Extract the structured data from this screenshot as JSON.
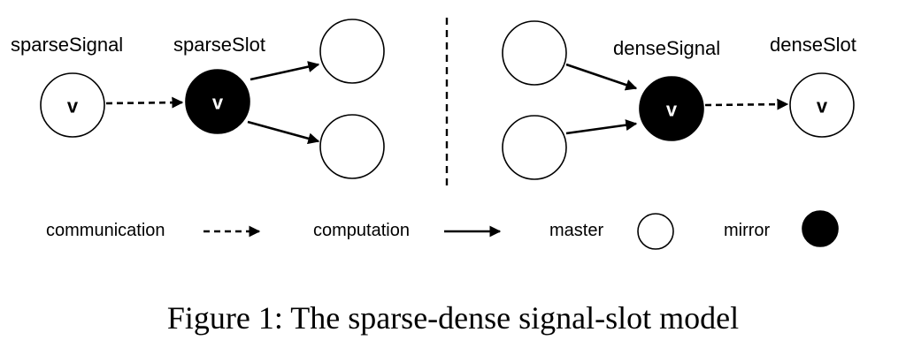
{
  "diagram": {
    "left": {
      "signal_label": "sparseSignal",
      "slot_label": "sparseSlot",
      "signal_node_text": "v",
      "slot_node_text": "v"
    },
    "right": {
      "signal_label": "denseSignal",
      "slot_label": "denseSlot",
      "signal_node_text": "v",
      "slot_node_text": "v"
    }
  },
  "legend": {
    "communication": "communication",
    "computation": "computation",
    "master": "master",
    "mirror": "mirror"
  },
  "caption": "Figure 1: The sparse-dense signal-slot model",
  "colors": {
    "master_fill": "#ffffff",
    "mirror_fill": "#000000",
    "stroke": "#000000"
  }
}
